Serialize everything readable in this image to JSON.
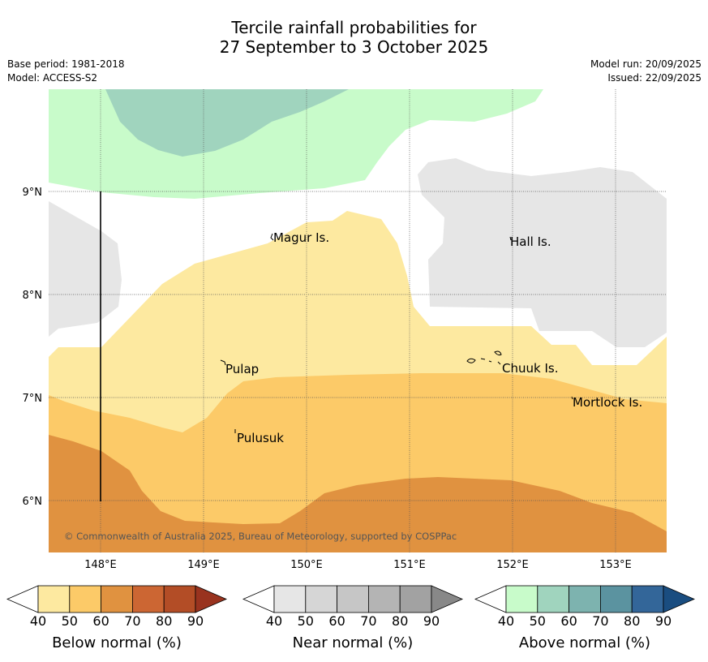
{
  "title": {
    "line1": "Tercile rainfall probabilities for",
    "line2": "27 September to 3 October 2025"
  },
  "meta": {
    "base_period": "Base period: 1981-2018",
    "model": "Model: ACCESS-S2",
    "model_run": "Model run: 20/09/2025",
    "issued": "Issued: 22/09/2025"
  },
  "map": {
    "lat_labels": [
      "9°N",
      "8°N",
      "7°N",
      "6°N"
    ],
    "lon_labels": [
      "148°E",
      "149°E",
      "150°E",
      "151°E",
      "152°E",
      "153°E"
    ],
    "places": [
      {
        "name": "Magur Is."
      },
      {
        "name": "Hall Is."
      },
      {
        "name": "Pulap"
      },
      {
        "name": "Chuuk Is."
      },
      {
        "name": "Mortlock Is."
      },
      {
        "name": "Pulusuk"
      }
    ],
    "copyright": "© Commonwealth of Australia 2025, Bureau of Meteorology, supported by COSPPac",
    "colors": {
      "below_50_60": "#FDE9A0",
      "below_60_70": "#FCCA68",
      "below_70_80": "#E09240",
      "near_40_50": "#E6E6E6",
      "above_40_50": "#C8FBCA",
      "above_50_60": "#A0D4BE",
      "background": "#FFFFFF"
    }
  },
  "colorbars": [
    {
      "label": "Below normal (%)",
      "ticks": [
        "40",
        "50",
        "60",
        "70",
        "80",
        "90"
      ],
      "colors": [
        "#FFFFFF",
        "#FDE9A0",
        "#FCCA68",
        "#E09240",
        "#CC6633",
        "#B34D26",
        "#99331F"
      ]
    },
    {
      "label": "Near normal (%)",
      "ticks": [
        "40",
        "50",
        "60",
        "70",
        "80",
        "90"
      ],
      "colors": [
        "#FFFFFF",
        "#E6E6E6",
        "#D6D6D6",
        "#C6C6C6",
        "#B4B4B4",
        "#A2A2A2",
        "#888888"
      ]
    },
    {
      "label": "Above normal (%)",
      "ticks": [
        "40",
        "50",
        "60",
        "70",
        "80",
        "90"
      ],
      "colors": [
        "#FFFFFF",
        "#C8FBCA",
        "#A0D4BE",
        "#7DB3AF",
        "#5B93A0",
        "#336699",
        "#1A4D80"
      ]
    }
  ]
}
